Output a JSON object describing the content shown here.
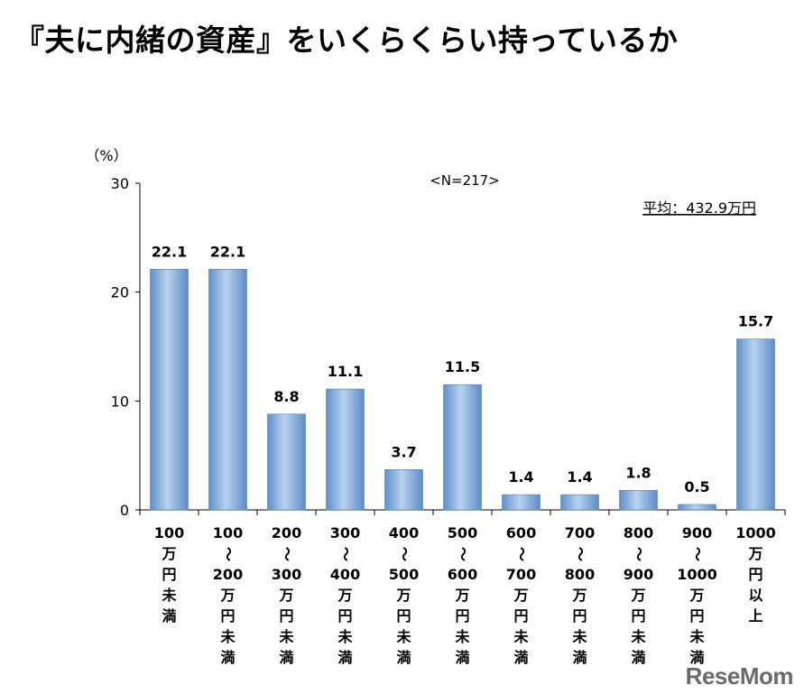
{
  "title": "『夫に内緒の資産』をいくらくらい持っているか",
  "watermark": "ReseMom",
  "chart_data": {
    "type": "bar",
    "unit_label": "（%）",
    "sample_note": "<N=217>",
    "average_note": "平均：432.9万円",
    "ylim": [
      0,
      30
    ],
    "yticks": [
      0,
      10,
      20,
      30
    ],
    "bar_color": "#8db4e2",
    "categories": [
      [
        "100",
        "万",
        "円",
        "未",
        "満"
      ],
      [
        "100",
        "〜",
        "200",
        "万",
        "円",
        "未",
        "満"
      ],
      [
        "200",
        "〜",
        "300",
        "万",
        "円",
        "未",
        "満"
      ],
      [
        "300",
        "〜",
        "400",
        "万",
        "円",
        "未",
        "満"
      ],
      [
        "400",
        "〜",
        "500",
        "万",
        "円",
        "未",
        "満"
      ],
      [
        "500",
        "〜",
        "600",
        "万",
        "円",
        "未",
        "満"
      ],
      [
        "600",
        "〜",
        "700",
        "万",
        "円",
        "未",
        "満"
      ],
      [
        "700",
        "〜",
        "800",
        "万",
        "円",
        "未",
        "満"
      ],
      [
        "800",
        "〜",
        "900",
        "万",
        "円",
        "未",
        "満"
      ],
      [
        "900",
        "〜",
        "1000",
        "万",
        "円",
        "未",
        "満"
      ],
      [
        "1000",
        "万",
        "円",
        "以",
        "上"
      ]
    ],
    "values": [
      22.1,
      22.1,
      8.8,
      11.1,
      3.7,
      11.5,
      1.4,
      1.4,
      1.8,
      0.5,
      15.7
    ],
    "value_labels": [
      "22.1",
      "22.1",
      "8.8",
      "11.1",
      "3.7",
      "11.5",
      "1.4",
      "1.4",
      "1.8",
      "0.5",
      "15.7"
    ]
  }
}
